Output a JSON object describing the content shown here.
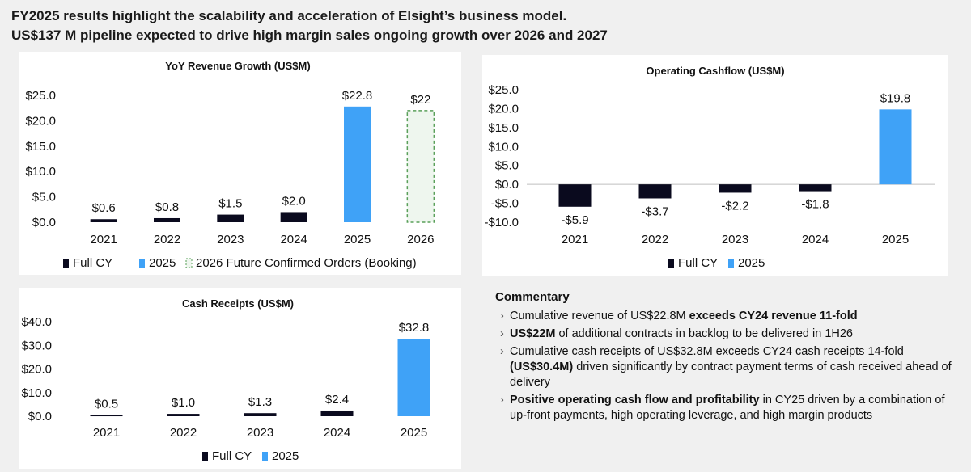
{
  "headline": {
    "line1": "FY2025 results highlight the scalability and acceleration of Elsight’s business model.",
    "line2": "US$137 M pipeline expected to drive high margin sales ongoing growth over 2026 and 2027"
  },
  "colors": {
    "full_cy": "#0a0a1e",
    "y2025": "#3fa2f7",
    "booking_border": "#5aa05a",
    "booking_fill": "#eef6ee"
  },
  "chart_data": [
    {
      "id": "revenue",
      "type": "bar",
      "title": "YoY Revenue Growth (US$M)",
      "categories": [
        "2021",
        "2022",
        "2023",
        "2024",
        "2025",
        "2026"
      ],
      "values": [
        0.6,
        0.8,
        1.5,
        2.0,
        22.8,
        22
      ],
      "value_labels": [
        "$0.6",
        "$0.8",
        "$1.5",
        "$2.0",
        "$22.8",
        "$22"
      ],
      "styles": [
        "full",
        "full",
        "full",
        "full",
        "y2025",
        "booking"
      ],
      "ylim": [
        0,
        25
      ],
      "yticks": [
        0,
        5,
        10,
        15,
        20,
        25
      ],
      "ytick_labels": [
        "$0.0",
        "$5.0",
        "$10.0",
        "$15.0",
        "$20.0",
        "$25.0"
      ],
      "legend": [
        "Full CY",
        "2025",
        "2026 Future Confirmed Orders (Booking)"
      ],
      "legend_styles": [
        "full",
        "y2025",
        "booking"
      ],
      "legend_position": "bottom",
      "grid": false
    },
    {
      "id": "cashflow",
      "type": "bar",
      "title": "Operating Cashflow (US$M)",
      "categories": [
        "2021",
        "2022",
        "2023",
        "2024",
        "2025"
      ],
      "values": [
        -5.9,
        -3.7,
        -2.2,
        -1.8,
        19.8
      ],
      "value_labels": [
        "-$5.9",
        "-$3.7",
        "-$2.2",
        "-$1.8",
        "$19.8"
      ],
      "styles": [
        "full",
        "full",
        "full",
        "full",
        "y2025"
      ],
      "ylim": [
        -10,
        25
      ],
      "yticks": [
        -10,
        -5,
        0,
        5,
        10,
        15,
        20,
        25
      ],
      "ytick_labels": [
        "-$10.0",
        "-$5.0",
        "$0.0",
        "$5.0",
        "$10.0",
        "$15.0",
        "$20.0",
        "$25.0"
      ],
      "legend": [
        "Full CY",
        "2025"
      ],
      "legend_styles": [
        "full",
        "y2025"
      ],
      "legend_position": "bottom",
      "grid": false
    },
    {
      "id": "receipts",
      "type": "bar",
      "title": "Cash Receipts (US$M)",
      "categories": [
        "2021",
        "2022",
        "2023",
        "2024",
        "2025"
      ],
      "values": [
        0.5,
        1.0,
        1.3,
        2.4,
        32.8
      ],
      "value_labels": [
        "$0.5",
        "$1.0",
        "$1.3",
        "$2.4",
        "$32.8"
      ],
      "styles": [
        "full",
        "full",
        "full",
        "full",
        "y2025"
      ],
      "ylim": [
        0,
        40
      ],
      "yticks": [
        0,
        10,
        20,
        30,
        40
      ],
      "ytick_labels": [
        "$0.0",
        "$10.0",
        "$20.0",
        "$30.0",
        "$40.0"
      ],
      "legend": [
        "Full CY",
        "2025"
      ],
      "legend_styles": [
        "full",
        "y2025"
      ],
      "legend_position": "bottom",
      "grid": false
    }
  ],
  "commentary": {
    "title": "Commentary",
    "items": [
      {
        "pre": "Cumulative revenue of US$22.8M ",
        "bold": "exceeds CY24 revenue 11-fold",
        "post": ""
      },
      {
        "pre": "",
        "bold": "US$22M",
        "post": " of additional contracts in backlog to be delivered in 1H26"
      },
      {
        "pre": "Cumulative cash receipts of US$32.8M exceeds CY24 cash receipts 14-fold ",
        "bold": "(US$30.4M)",
        "post": " driven significantly by contract payment terms of cash received ahead of delivery"
      },
      {
        "pre": "",
        "bold": "Positive operating cash flow and profitability",
        "post": " in CY25 driven by a combination of up-front payments, high operating leverage, and high margin products"
      }
    ]
  }
}
